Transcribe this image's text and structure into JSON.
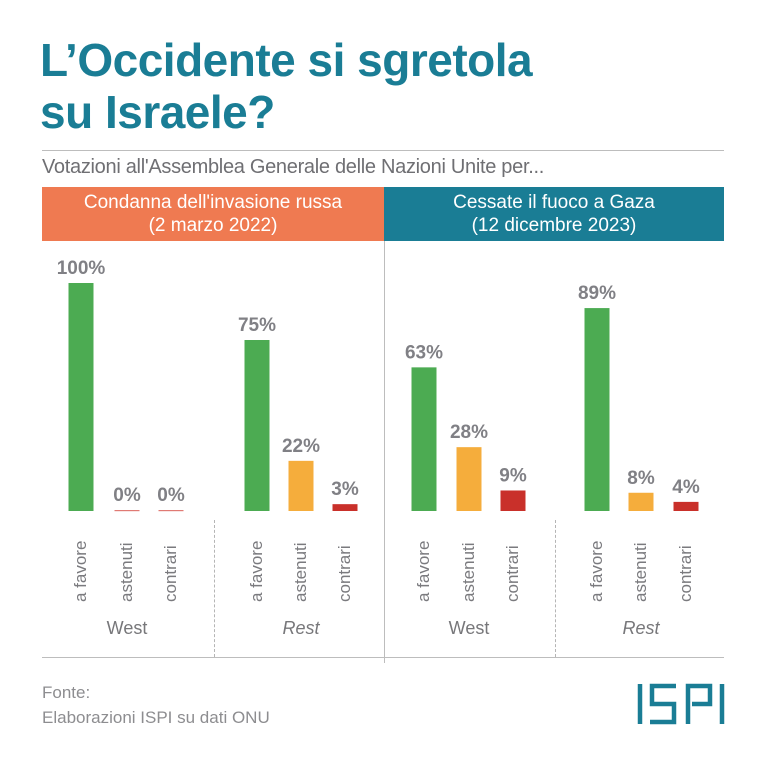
{
  "title": "L’Occidente si sgretola su Israele?",
  "title_lines": [
    "L’Occidente si sgretola",
    "su Israele?"
  ],
  "subtitle": "Votazioni all'Assemblea Generale delle Nazioni Unite per...",
  "panels": [
    {
      "title_line1": "Condanna dell'invasione russa",
      "title_line2": "(2 marzo 2022)",
      "color": "#ef7a51"
    },
    {
      "title_line1": "Cessate il fuoco a Gaza",
      "title_line2": "(12 dicembre 2023)",
      "color": "#1a7d95"
    }
  ],
  "source": {
    "label": "Fonte:",
    "text": "Elaborazioni ISPI su dati ONU"
  },
  "logo": {
    "text": "ISPI",
    "color": "#1a7d95"
  },
  "colors": {
    "a favore": "#4cab52",
    "astenuti": "#f5ad3c",
    "contrari": "#c9302a",
    "label": "#7a7a7e"
  },
  "chart_data": {
    "type": "bar",
    "title": "L’Occidente si sgretola su Israele?",
    "subtitle": "Votazioni all'Assemblea Generale delle Nazioni Unite per...",
    "categories": [
      "a favore",
      "astenuti",
      "contrari"
    ],
    "ylim": [
      0,
      100
    ],
    "unit": "%",
    "grid": false,
    "panels": [
      {
        "title": "Condanna dell'invasione russa (2 marzo 2022)",
        "groups": [
          {
            "name": "West",
            "italic": false,
            "values": [
              100,
              0,
              0
            ],
            "labels": [
              "100%",
              "0%",
              "0%"
            ]
          },
          {
            "name": "Rest",
            "italic": true,
            "values": [
              75,
              22,
              3
            ],
            "labels": [
              "75%",
              "22%",
              "3%"
            ]
          }
        ]
      },
      {
        "title": "Cessate il fuoco a Gaza (12 dicembre 2023)",
        "groups": [
          {
            "name": "West",
            "italic": false,
            "values": [
              63,
              28,
              9
            ],
            "labels": [
              "63%",
              "28%",
              "9%"
            ]
          },
          {
            "name": "Rest",
            "italic": true,
            "values": [
              89,
              8,
              4
            ],
            "labels": [
              "89%",
              "8%",
              "4%"
            ]
          }
        ]
      }
    ]
  }
}
